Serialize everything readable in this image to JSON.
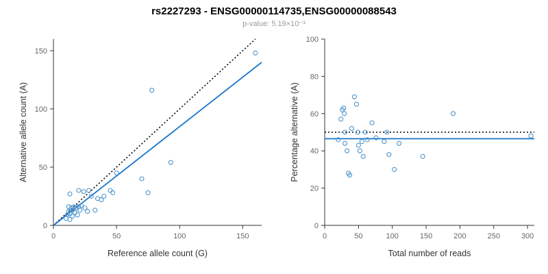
{
  "title": "rs2227293 - ENSG00000114735,ENSG00000088543",
  "subtitle": "p-value: 5.19×10⁻³",
  "colors": {
    "point": "#4d94cb",
    "regression_line": "#1874CD",
    "dotted_line": "#000000",
    "axis": "#333333",
    "tick_label": "#666666"
  },
  "chart_data": [
    {
      "type": "scatter",
      "xlabel": "Reference allele count (G)",
      "ylabel": "Alternative allele count (A)",
      "xlim": [
        0,
        165
      ],
      "ylim": [
        0,
        160
      ],
      "xticks": [
        0,
        50,
        100,
        150
      ],
      "yticks": [
        0,
        50,
        100,
        150
      ],
      "grid": false,
      "points": [
        [
          10,
          6
        ],
        [
          11,
          9
        ],
        [
          12,
          12
        ],
        [
          12,
          16
        ],
        [
          13,
          5
        ],
        [
          13,
          10
        ],
        [
          14,
          15
        ],
        [
          15,
          8
        ],
        [
          15,
          13
        ],
        [
          16,
          16
        ],
        [
          17,
          11
        ],
        [
          18,
          15
        ],
        [
          19,
          9
        ],
        [
          20,
          16
        ],
        [
          21,
          13
        ],
        [
          22,
          17
        ],
        [
          13,
          27
        ],
        [
          20,
          30
        ],
        [
          24,
          29
        ],
        [
          25,
          15
        ],
        [
          27,
          12
        ],
        [
          28,
          30
        ],
        [
          30,
          25
        ],
        [
          33,
          13
        ],
        [
          35,
          23
        ],
        [
          38,
          22
        ],
        [
          40,
          25
        ],
        [
          45,
          30
        ],
        [
          47,
          28
        ],
        [
          50,
          45
        ],
        [
          70,
          40
        ],
        [
          75,
          28
        ],
        [
          78,
          116
        ],
        [
          93,
          54
        ],
        [
          160,
          148
        ]
      ],
      "lines": [
        {
          "name": "identity-line",
          "style": "dotted",
          "color": "#000000",
          "x1": 0,
          "y1": 0,
          "x2": 160,
          "y2": 160
        },
        {
          "name": "regression-line",
          "style": "solid",
          "color": "#1874CD",
          "x1": 0,
          "y1": 0,
          "x2": 165,
          "y2": 140
        }
      ]
    },
    {
      "type": "scatter",
      "xlabel": "Total number of reads",
      "ylabel": "Percentage alternative (A)",
      "xlim": [
        0,
        310
      ],
      "ylim": [
        0,
        100
      ],
      "xticks": [
        0,
        50,
        100,
        150,
        200,
        250,
        300
      ],
      "yticks": [
        0,
        20,
        40,
        60,
        80,
        100
      ],
      "grid": false,
      "points": [
        [
          20,
          46
        ],
        [
          24,
          57
        ],
        [
          26,
          62
        ],
        [
          28,
          63
        ],
        [
          29,
          60
        ],
        [
          30,
          50
        ],
        [
          30,
          44
        ],
        [
          33,
          40
        ],
        [
          35,
          28
        ],
        [
          37,
          27
        ],
        [
          40,
          52
        ],
        [
          44,
          69
        ],
        [
          47,
          65
        ],
        [
          49,
          50
        ],
        [
          50,
          43
        ],
        [
          52,
          40
        ],
        [
          55,
          45
        ],
        [
          57,
          37
        ],
        [
          60,
          50
        ],
        [
          63,
          46
        ],
        [
          70,
          55
        ],
        [
          76,
          47
        ],
        [
          88,
          45
        ],
        [
          92,
          50
        ],
        [
          95,
          38
        ],
        [
          103,
          30
        ],
        [
          110,
          44
        ],
        [
          145,
          37
        ],
        [
          190,
          60
        ],
        [
          305,
          48
        ]
      ],
      "lines": [
        {
          "name": "fifty-percent-line",
          "style": "dotted",
          "color": "#000000",
          "x1": 0,
          "y1": 50,
          "x2": 310,
          "y2": 50
        },
        {
          "name": "mean-percentage-line",
          "style": "solid",
          "color": "#1874CD",
          "x1": 0,
          "y1": 46.5,
          "x2": 310,
          "y2": 46.5
        }
      ]
    }
  ]
}
